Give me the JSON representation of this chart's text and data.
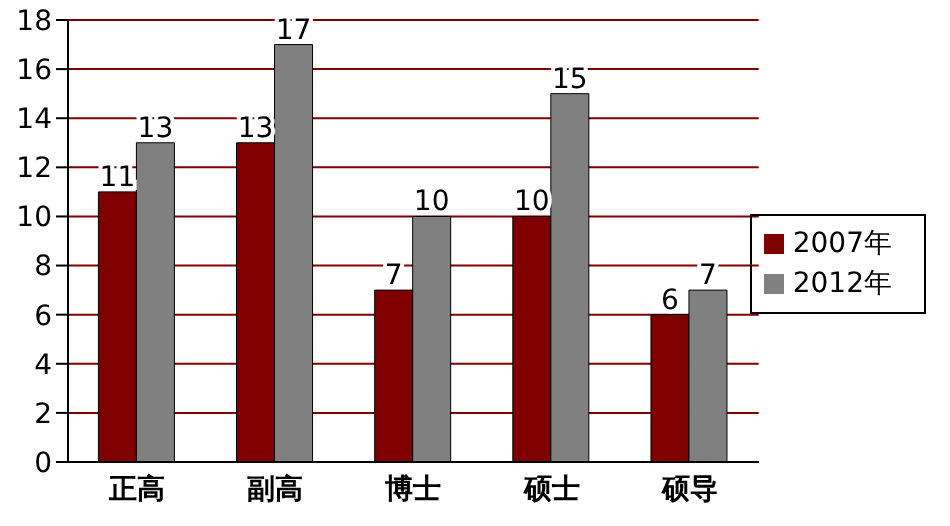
{
  "chart_data": {
    "type": "bar",
    "categories": [
      "正高",
      "副高",
      "博士",
      "硕士",
      "硕导"
    ],
    "series": [
      {
        "name": "2007年",
        "color": "#800000",
        "values": [
          11,
          13,
          7,
          10,
          6
        ]
      },
      {
        "name": "2012年",
        "color": "#808080",
        "values": [
          13,
          17,
          10,
          15,
          7
        ]
      }
    ],
    "ylim": [
      0,
      18
    ],
    "yticks": [
      0,
      2,
      4,
      6,
      8,
      10,
      12,
      14,
      16,
      18
    ],
    "grid": "y",
    "legend": "right",
    "data_labels": true
  }
}
